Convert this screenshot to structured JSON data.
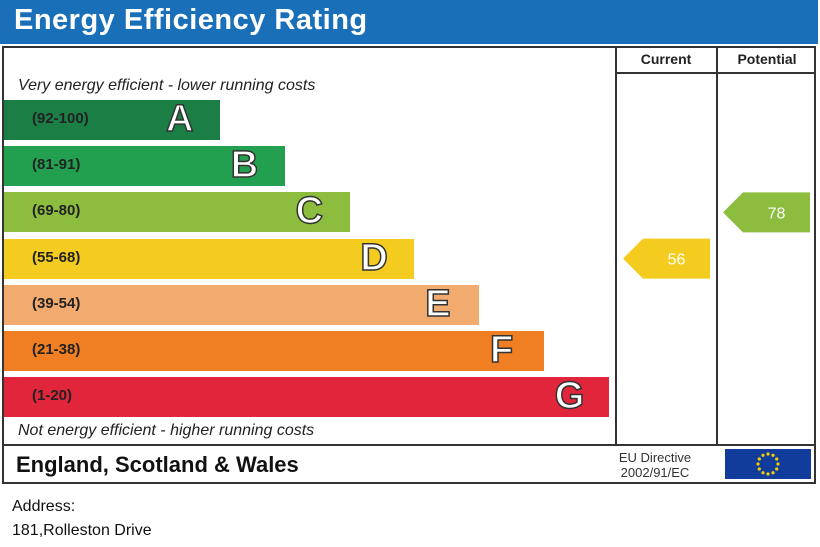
{
  "title": "Energy Efficiency Rating",
  "columns": {
    "current": "Current",
    "potential": "Potential"
  },
  "notes": {
    "top": "Very energy efficient - lower running costs",
    "bottom": "Not energy efficient - higher running costs"
  },
  "footer": {
    "region": "England, Scotland & Wales",
    "directive_line1": "EU Directive",
    "directive_line2": "2002/91/EC"
  },
  "address": {
    "label": "Address:",
    "value": "181,Rolleston Drive"
  },
  "chart_data": {
    "type": "bar",
    "title": "Energy Efficiency Rating",
    "categories": [
      "A",
      "B",
      "C",
      "D",
      "E",
      "F",
      "G"
    ],
    "ranges": [
      "(92-100)",
      "(81-91)",
      "(69-80)",
      "(55-68)",
      "(39-54)",
      "(21-38)",
      "(1-20)"
    ],
    "colors": [
      "#1b7e45",
      "#22a050",
      "#8cbd3f",
      "#f4cc1f",
      "#f2ab6e",
      "#ef7f22",
      "#e1253a"
    ],
    "current": {
      "value": 56,
      "color": "#f4cc1f"
    },
    "potential": {
      "value": 78,
      "color": "#8cbd3f"
    }
  }
}
